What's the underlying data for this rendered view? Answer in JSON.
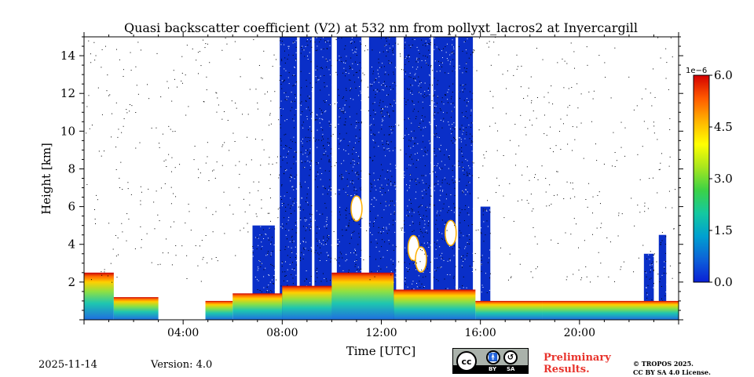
{
  "chart_data": {
    "type": "heatmap",
    "title": "Quasi backscatter coefficient (V2) at 532 nm from pollyxt_lacros2 at Invercargill",
    "xlabel": "Time [UTC]",
    "ylabel": "Height [km]",
    "x_unit": "hours UTC",
    "xlim": [
      0,
      24
    ],
    "ylim": [
      0,
      15
    ],
    "xticks": [
      {
        "value": 4,
        "label": "04:00"
      },
      {
        "value": 8,
        "label": "08:00"
      },
      {
        "value": 12,
        "label": "12:00"
      },
      {
        "value": 16,
        "label": "16:00"
      },
      {
        "value": 20,
        "label": "20:00"
      }
    ],
    "yticks": [
      {
        "value": 2,
        "label": "2"
      },
      {
        "value": 4,
        "label": "4"
      },
      {
        "value": 6,
        "label": "6"
      },
      {
        "value": 8,
        "label": "8"
      },
      {
        "value": 10,
        "label": "10"
      },
      {
        "value": 12,
        "label": "12"
      },
      {
        "value": 14,
        "label": "14"
      }
    ],
    "colorbar": {
      "min": 0,
      "max": 6.0,
      "exponent_label": "1e−6",
      "ticks": [
        {
          "value": 0,
          "label": "0.0"
        },
        {
          "value": 1.5,
          "label": "1.5"
        },
        {
          "value": 3.0,
          "label": "3.0"
        },
        {
          "value": 4.5,
          "label": "4.5"
        },
        {
          "value": 6.0,
          "label": "6.0"
        }
      ],
      "colormap": [
        "#0a1fd6",
        "#0d62d8",
        "#00a0d0",
        "#14c8a0",
        "#3cd246",
        "#a8e61e",
        "#ffff00",
        "#ffb400",
        "#ff5a00",
        "#d40000"
      ]
    },
    "boundary_layer": [
      {
        "start": 0.0,
        "end": 1.2,
        "top": 2.5
      },
      {
        "start": 1.2,
        "end": 3.0,
        "top": 1.2
      },
      {
        "start": 4.9,
        "end": 6.0,
        "top": 1.0
      },
      {
        "start": 6.0,
        "end": 8.0,
        "top": 1.4
      },
      {
        "start": 8.0,
        "end": 10.0,
        "top": 1.8
      },
      {
        "start": 10.0,
        "end": 12.5,
        "top": 2.5
      },
      {
        "start": 12.5,
        "end": 15.8,
        "top": 1.6
      },
      {
        "start": 15.8,
        "end": 18.5,
        "top": 1.0
      },
      {
        "start": 18.5,
        "end": 24.0,
        "top": 1.0
      }
    ],
    "dense_signal_periods": [
      {
        "start": 6.8,
        "end": 7.7,
        "top": 5.0
      },
      {
        "start": 7.9,
        "end": 8.6,
        "top": 15.0
      },
      {
        "start": 8.7,
        "end": 9.2,
        "top": 15.0
      },
      {
        "start": 9.3,
        "end": 10.0,
        "top": 15.0
      },
      {
        "start": 10.2,
        "end": 11.2,
        "top": 15.0
      },
      {
        "start": 11.5,
        "end": 12.6,
        "top": 15.0
      },
      {
        "start": 12.9,
        "end": 14.0,
        "top": 15.0
      },
      {
        "start": 14.1,
        "end": 15.0,
        "top": 15.0
      },
      {
        "start": 15.1,
        "end": 15.7,
        "top": 15.0
      },
      {
        "start": 16.0,
        "end": 16.4,
        "top": 6.0
      },
      {
        "start": 22.6,
        "end": 23.0,
        "top": 3.5
      },
      {
        "start": 23.2,
        "end": 23.5,
        "top": 4.5
      }
    ],
    "cloud_gaps": [
      {
        "start": 8.6,
        "end": 8.7
      },
      {
        "start": 10.0,
        "end": 10.2
      },
      {
        "start": 11.2,
        "end": 11.5
      },
      {
        "start": 12.6,
        "end": 12.9
      },
      {
        "start": 15.7,
        "end": 16.0
      }
    ],
    "cloud_patches": [
      {
        "time": 11.0,
        "height": 5.9
      },
      {
        "time": 13.3,
        "height": 3.8
      },
      {
        "time": 14.8,
        "height": 4.6
      },
      {
        "time": 13.6,
        "height": 3.2
      }
    ]
  },
  "footer": {
    "date": "2025-11-14",
    "version": "Version: 4.0",
    "license_badge": {
      "by": "BY",
      "sa": "SA",
      "cc": "cc"
    },
    "preliminary_line1": "Preliminary",
    "preliminary_line2": "Results.",
    "copyright_line1": "© TROPOS 2025.",
    "copyright_line2": "CC BY SA 4.0 License."
  }
}
